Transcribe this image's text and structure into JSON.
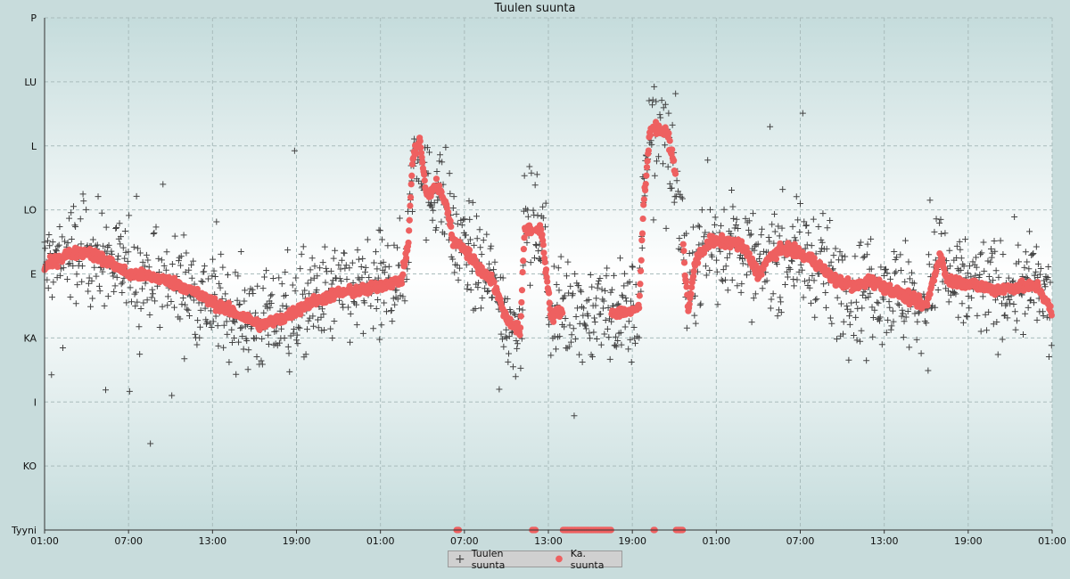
{
  "chart_data": {
    "type": "scatter",
    "title": "Tuulen suunta",
    "xlabel": "",
    "ylabel": "",
    "y_ticks": [
      "Tyyni",
      "KO",
      "I",
      "KA",
      "E",
      "LO",
      "L",
      "LU",
      "P"
    ],
    "x_ticks": [
      "01:00",
      "07:00",
      "13:00",
      "19:00",
      "01:00",
      "07:00",
      "13:00",
      "19:00",
      "01:00",
      "07:00",
      "13:00",
      "19:00",
      "01:00"
    ],
    "xlim_hours": [
      0,
      72
    ],
    "ylim": [
      0,
      8
    ],
    "grid": true,
    "legend_position": "bottom-center",
    "colors": {
      "scatter": "#444444",
      "average": "#ee6060",
      "background_top": "#c5dcdc",
      "background_center": "#ffffff"
    },
    "series": [
      {
        "name": "Tuulen suunta",
        "marker": "plus",
        "note": "raw wind direction samples, scattered around the average with spread",
        "spread": 0.7
      },
      {
        "name": "Ka. suunta",
        "marker": "dot",
        "anchors": [
          [
            0.0,
            4.1
          ],
          [
            1.5,
            4.3
          ],
          [
            3.0,
            4.35
          ],
          [
            4.5,
            4.2
          ],
          [
            6.0,
            4.0
          ],
          [
            8.0,
            3.95
          ],
          [
            10.0,
            3.8
          ],
          [
            12.0,
            3.55
          ],
          [
            14.0,
            3.35
          ],
          [
            15.5,
            3.2
          ],
          [
            17.0,
            3.3
          ],
          [
            19.0,
            3.55
          ],
          [
            21.0,
            3.7
          ],
          [
            23.0,
            3.75
          ],
          [
            24.5,
            3.85
          ],
          [
            25.5,
            3.9
          ],
          [
            26.0,
            4.5
          ],
          [
            26.3,
            5.8
          ],
          [
            26.8,
            6.1
          ],
          [
            27.3,
            5.2
          ],
          [
            28.0,
            5.4
          ],
          [
            28.7,
            5.1
          ],
          [
            29.2,
            4.5
          ],
          [
            30.0,
            4.4
          ],
          [
            31.0,
            4.1
          ],
          [
            32.0,
            3.9
          ],
          [
            33.0,
            3.3
          ],
          [
            34.0,
            3.1
          ],
          [
            34.3,
            4.7
          ],
          [
            35.5,
            4.7
          ],
          [
            36.2,
            3.3
          ],
          [
            36.6,
            3.4
          ],
          [
            42.0,
            3.4
          ],
          [
            42.5,
            3.5
          ],
          [
            42.8,
            5.1
          ],
          [
            43.3,
            6.3
          ],
          [
            44.5,
            6.2
          ],
          [
            45.0,
            5.7
          ],
          [
            45.5,
            4.8
          ],
          [
            46.0,
            3.4
          ],
          [
            46.5,
            4.2
          ],
          [
            47.5,
            4.5
          ],
          [
            49.0,
            4.5
          ],
          [
            50.0,
            4.4
          ],
          [
            51.0,
            4.0
          ],
          [
            52.0,
            4.3
          ],
          [
            53.0,
            4.4
          ],
          [
            54.0,
            4.3
          ],
          [
            55.0,
            4.2
          ],
          [
            56.5,
            3.9
          ],
          [
            58.0,
            3.8
          ],
          [
            59.0,
            3.9
          ],
          [
            60.5,
            3.75
          ],
          [
            62.0,
            3.6
          ],
          [
            63.0,
            3.5
          ],
          [
            64.0,
            4.3
          ],
          [
            64.5,
            3.9
          ],
          [
            66.0,
            3.85
          ],
          [
            68.0,
            3.75
          ],
          [
            69.5,
            3.8
          ],
          [
            71.0,
            3.8
          ],
          [
            71.5,
            3.6
          ],
          [
            72.0,
            3.4
          ]
        ],
        "calm_ranges_hours": [
          [
            29.4,
            29.6
          ],
          [
            34.8,
            35.1
          ],
          [
            37.0,
            40.5
          ],
          [
            43.5,
            43.6
          ],
          [
            45.1,
            45.6
          ]
        ]
      }
    ]
  }
}
